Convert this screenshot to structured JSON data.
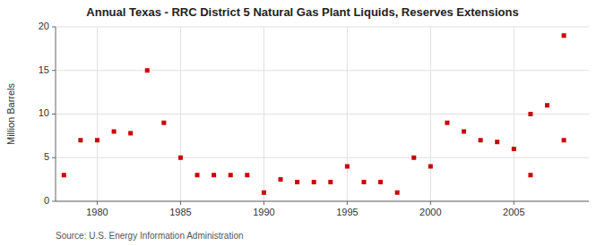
{
  "chart_data": {
    "type": "scatter",
    "title": "Annual Texas - RRC District 5 Natural Gas Plant Liquids, Reserves Extensions",
    "ylabel": "Million Barrels",
    "annotations": [
      "Source: U.S. Energy Information Administration"
    ],
    "series": [
      {
        "color": "#cc0000",
        "marker": "square",
        "x": [
          1978,
          1979,
          1980,
          1981,
          1982,
          1983,
          1984,
          1985,
          1986,
          1987,
          1988,
          1989,
          1990,
          1991,
          1992,
          1993,
          1994,
          1995,
          1996,
          1997,
          1998,
          1999,
          2000,
          2001,
          2002,
          2003,
          2004,
          2005,
          2006,
          2007,
          2008
        ],
        "values": [
          3.0,
          7.0,
          7.0,
          8.0,
          7.8,
          15.0,
          9.0,
          5.0,
          3.0,
          3.0,
          3.0,
          3.0,
          1.0,
          2.5,
          2.2,
          2.2,
          2.2,
          4.0,
          2.2,
          2.2,
          1.0,
          5.0,
          4.0,
          9.0,
          8.0,
          7.0,
          6.8,
          6.0,
          3.0,
          11.0,
          7.0
        ]
      },
      {
        "color": "#cc0000",
        "marker": "square",
        "x": [
          2006,
          2008
        ],
        "values": [
          10.0,
          19.0
        ]
      }
    ],
    "xlim": [
      1977.5,
      2009.5
    ],
    "ylim": [
      0,
      20
    ],
    "xticks": [
      1980,
      1985,
      1990,
      1995,
      2000,
      2005
    ],
    "yticks": [
      0,
      5,
      10,
      15,
      20
    ],
    "grid": true
  }
}
